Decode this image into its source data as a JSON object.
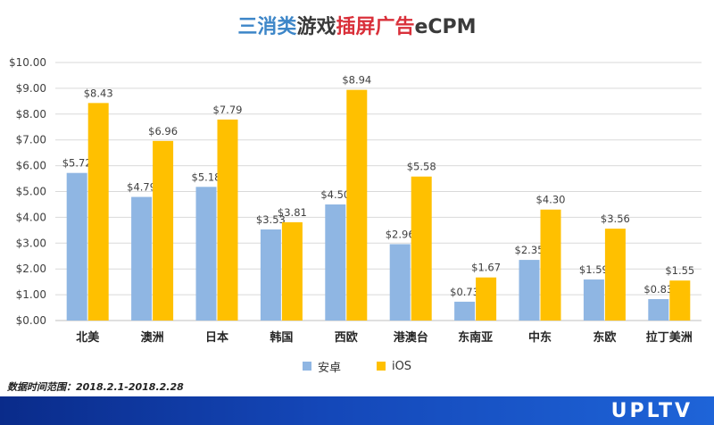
{
  "title": {
    "part1": "三消类",
    "part2": "游戏",
    "part3": "插屏广告",
    "part4": "eCPM"
  },
  "footnote": "数据时间范围：2018.2.1-2018.2.28",
  "logo": "UPLTV",
  "colors": {
    "android": "#8fb6e3",
    "ios": "#ffc000",
    "grid": "#d9d9d9",
    "axis_text": "#404040"
  },
  "chart_data": {
    "type": "bar",
    "categories": [
      "北美",
      "澳洲",
      "日本",
      "韩国",
      "西欧",
      "港澳台",
      "东南亚",
      "中东",
      "东欧",
      "拉丁美洲"
    ],
    "series": [
      {
        "name": "安卓",
        "values": [
          5.72,
          4.79,
          5.18,
          3.53,
          4.5,
          2.96,
          0.73,
          2.35,
          1.59,
          0.83
        ],
        "labels": [
          "$5.72",
          "$4.79",
          "$5.18",
          "$3.53",
          "$4.50",
          "$2.96",
          "$0.73",
          "$2.35",
          "$1.59",
          "$0.83"
        ]
      },
      {
        "name": "iOS",
        "values": [
          8.43,
          6.96,
          7.79,
          3.81,
          8.94,
          5.58,
          1.67,
          4.3,
          3.56,
          1.55
        ],
        "labels": [
          "$8.43",
          "$6.96",
          "$7.79",
          "$3.81",
          "$8.94",
          "$5.58",
          "$1.67",
          "$4.30",
          "$3.56",
          "$1.55"
        ]
      }
    ],
    "ylim": [
      0,
      10
    ],
    "yticks": [
      "$0.00",
      "$1.00",
      "$2.00",
      "$3.00",
      "$4.00",
      "$5.00",
      "$6.00",
      "$7.00",
      "$8.00",
      "$9.00",
      "$10.00"
    ],
    "grid": true,
    "legend_position": "bottom"
  }
}
